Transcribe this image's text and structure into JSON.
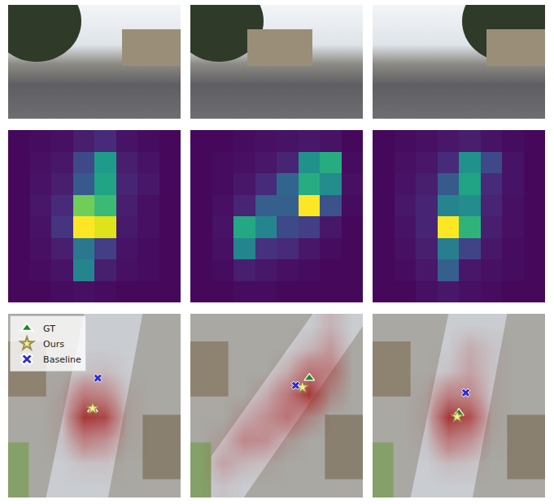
{
  "chart_data": [
    {
      "type": "heatmap",
      "color": "viridis",
      "zlim": [
        0,
        1
      ],
      "tick_labels": false,
      "cells": [
        [
          0.02,
          0.03,
          0.04,
          0.08,
          0.12,
          0.05,
          0.03,
          0.02
        ],
        [
          0.02,
          0.04,
          0.06,
          0.22,
          0.55,
          0.08,
          0.05,
          0.02
        ],
        [
          0.02,
          0.05,
          0.08,
          0.28,
          0.58,
          0.1,
          0.06,
          0.02
        ],
        [
          0.02,
          0.06,
          0.12,
          0.78,
          0.68,
          0.08,
          0.04,
          0.02
        ],
        [
          0.02,
          0.05,
          0.15,
          1.0,
          0.95,
          0.07,
          0.04,
          0.02
        ],
        [
          0.02,
          0.04,
          0.08,
          0.4,
          0.18,
          0.05,
          0.03,
          0.02
        ],
        [
          0.02,
          0.03,
          0.05,
          0.45,
          0.08,
          0.04,
          0.03,
          0.02
        ],
        [
          0.02,
          0.02,
          0.03,
          0.04,
          0.03,
          0.02,
          0.02,
          0.02
        ]
      ]
    },
    {
      "type": "heatmap",
      "color": "viridis",
      "zlim": [
        0,
        1
      ],
      "tick_labels": false,
      "cells": [
        [
          0.02,
          0.02,
          0.03,
          0.04,
          0.05,
          0.06,
          0.05,
          0.02
        ],
        [
          0.02,
          0.03,
          0.04,
          0.06,
          0.1,
          0.5,
          0.62,
          0.03
        ],
        [
          0.02,
          0.03,
          0.06,
          0.12,
          0.32,
          0.62,
          0.48,
          0.04
        ],
        [
          0.02,
          0.04,
          0.1,
          0.3,
          0.3,
          1.0,
          0.25,
          0.03
        ],
        [
          0.02,
          0.05,
          0.6,
          0.45,
          0.22,
          0.18,
          0.06,
          0.02
        ],
        [
          0.02,
          0.04,
          0.45,
          0.14,
          0.12,
          0.06,
          0.03,
          0.02
        ],
        [
          0.02,
          0.03,
          0.08,
          0.06,
          0.04,
          0.03,
          0.02,
          0.02
        ],
        [
          0.02,
          0.02,
          0.03,
          0.03,
          0.02,
          0.02,
          0.02,
          0.02
        ]
      ]
    },
    {
      "type": "heatmap",
      "color": "viridis",
      "zlim": [
        0,
        1
      ],
      "tick_labels": false,
      "cells": [
        [
          0.02,
          0.03,
          0.04,
          0.06,
          0.08,
          0.05,
          0.03,
          0.02
        ],
        [
          0.02,
          0.04,
          0.06,
          0.12,
          0.5,
          0.22,
          0.05,
          0.02
        ],
        [
          0.02,
          0.05,
          0.08,
          0.28,
          0.58,
          0.12,
          0.05,
          0.02
        ],
        [
          0.02,
          0.06,
          0.1,
          0.45,
          0.48,
          0.1,
          0.04,
          0.02
        ],
        [
          0.02,
          0.05,
          0.1,
          1.0,
          0.65,
          0.08,
          0.04,
          0.02
        ],
        [
          0.02,
          0.04,
          0.08,
          0.42,
          0.2,
          0.06,
          0.03,
          0.02
        ],
        [
          0.02,
          0.03,
          0.06,
          0.3,
          0.06,
          0.04,
          0.03,
          0.02
        ],
        [
          0.02,
          0.02,
          0.04,
          0.06,
          0.04,
          0.03,
          0.02,
          0.02
        ]
      ]
    },
    {
      "type": "scatter",
      "xlim": [
        0,
        1
      ],
      "ylim": [
        0,
        1
      ],
      "tick_labels": false,
      "legend": "upper left",
      "probability": {
        "color": "red",
        "zlim": [
          0,
          1
        ],
        "cells": [
          [
            0,
            0,
            0,
            0,
            0,
            0,
            0,
            0
          ],
          [
            0,
            0,
            0,
            0,
            0,
            0,
            0,
            0
          ],
          [
            0,
            0,
            0,
            0.05,
            0.08,
            0,
            0,
            0
          ],
          [
            0,
            0,
            0.05,
            0.45,
            0.35,
            0.05,
            0,
            0
          ],
          [
            0,
            0,
            0.08,
            0.9,
            0.8,
            0.06,
            0,
            0
          ],
          [
            0,
            0,
            0.05,
            0.4,
            0.3,
            0.04,
            0,
            0
          ],
          [
            0,
            0,
            0,
            0.05,
            0.05,
            0,
            0,
            0
          ],
          [
            0,
            0,
            0,
            0,
            0,
            0,
            0,
            0
          ]
        ]
      },
      "series": [
        {
          "name": "GT",
          "color": "#1a8c1a",
          "marker": "triangle",
          "x": [
            0.49
          ],
          "values": [
            0.48
          ]
        },
        {
          "name": "Ours",
          "color": "#f6ef86",
          "marker": "star",
          "x": [
            0.49
          ],
          "values": [
            0.485
          ]
        },
        {
          "name": "Baseline",
          "color": "#2d2dd2",
          "marker": "x",
          "x": [
            0.52
          ],
          "values": [
            0.65
          ]
        }
      ]
    },
    {
      "type": "scatter",
      "xlim": [
        0,
        1
      ],
      "ylim": [
        0,
        1
      ],
      "tick_labels": false,
      "probability": {
        "color": "red",
        "zlim": [
          0,
          1
        ],
        "cells": [
          [
            0,
            0,
            0,
            0,
            0,
            0,
            0.12,
            0
          ],
          [
            0,
            0,
            0,
            0,
            0,
            0.1,
            0.25,
            0
          ],
          [
            0,
            0,
            0,
            0,
            0.15,
            0.5,
            0.4,
            0
          ],
          [
            0,
            0,
            0,
            0.15,
            0.45,
            0.9,
            0.2,
            0
          ],
          [
            0,
            0,
            0.15,
            0.3,
            0.5,
            0.2,
            0,
            0
          ],
          [
            0,
            0.08,
            0.35,
            0.3,
            0.1,
            0,
            0,
            0
          ],
          [
            0,
            0.2,
            0.1,
            0.05,
            0,
            0,
            0,
            0
          ],
          [
            0,
            0.05,
            0,
            0,
            0,
            0,
            0,
            0
          ]
        ]
      },
      "series": [
        {
          "name": "GT",
          "color": "#1a8c1a",
          "marker": "triangle",
          "x": [
            0.69
          ],
          "values": [
            0.65
          ]
        },
        {
          "name": "Ours",
          "color": "#f6ef86",
          "marker": "star",
          "x": [
            0.65
          ],
          "values": [
            0.6
          ]
        },
        {
          "name": "Baseline",
          "color": "#2d2dd2",
          "marker": "x",
          "x": [
            0.61
          ],
          "values": [
            0.61
          ]
        }
      ]
    },
    {
      "type": "scatter",
      "xlim": [
        0,
        1
      ],
      "ylim": [
        0,
        1
      ],
      "tick_labels": false,
      "probability": {
        "color": "red",
        "zlim": [
          0,
          1
        ],
        "cells": [
          [
            0,
            0,
            0,
            0,
            0,
            0,
            0,
            0
          ],
          [
            0,
            0,
            0,
            0,
            0.15,
            0.05,
            0,
            0
          ],
          [
            0,
            0,
            0,
            0.05,
            0.2,
            0.05,
            0,
            0
          ],
          [
            0,
            0,
            0.05,
            0.4,
            0.35,
            0.05,
            0,
            0
          ],
          [
            0,
            0,
            0.08,
            0.9,
            0.75,
            0.06,
            0,
            0
          ],
          [
            0,
            0,
            0.05,
            0.45,
            0.3,
            0.04,
            0,
            0
          ],
          [
            0,
            0,
            0,
            0.08,
            0.05,
            0,
            0,
            0
          ],
          [
            0,
            0,
            0,
            0,
            0,
            0,
            0,
            0
          ]
        ]
      },
      "series": [
        {
          "name": "GT",
          "color": "#1a8c1a",
          "marker": "triangle",
          "x": [
            0.5
          ],
          "values": [
            0.46
          ]
        },
        {
          "name": "Ours",
          "color": "#f6ef86",
          "marker": "star",
          "x": [
            0.49
          ],
          "values": [
            0.44
          ]
        },
        {
          "name": "Baseline",
          "color": "#2d2dd2",
          "marker": "x",
          "x": [
            0.54
          ],
          "values": [
            0.57
          ]
        }
      ]
    }
  ]
}
